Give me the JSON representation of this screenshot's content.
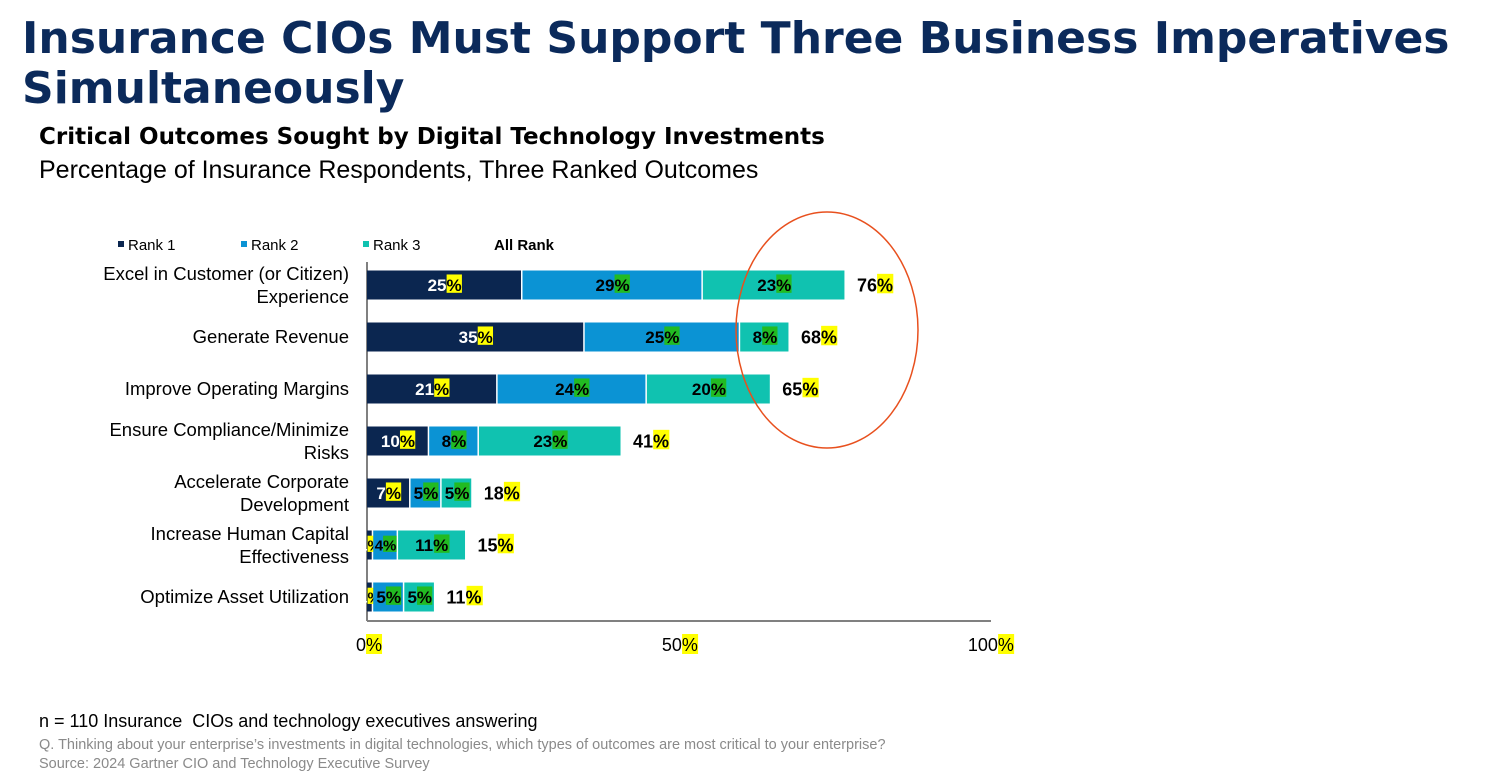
{
  "header": {
    "title": "Insurance CIOs Must Support Three Business Imperatives Simultaneously",
    "subtitle": "Critical Outcomes Sought by Digital Technology Investments",
    "subtitle2": "Percentage of Insurance Respondents, Three Ranked Outcomes"
  },
  "footer": {
    "n_note": "n = 110 Insurance  CIOs and technology executives answering",
    "question": "Q. Thinking about your enterprise’s investments in digital technologies, which types of outcomes are most critical to your enterprise?",
    "source": "Source: 2024 Gartner CIO and Technology Executive Survey"
  },
  "colors": {
    "rank1": "#0b2650",
    "rank2": "#0b93d4",
    "rank3": "#10c2b0",
    "percent_highlight": "#ffff00",
    "percent_highlight_green": "#22bb22",
    "circle": "#e8501e"
  },
  "chart_data": {
    "type": "bar",
    "orientation": "horizontal",
    "stacked": true,
    "categories": [
      [
        "Excel in Customer (or Citizen)",
        "Experience"
      ],
      [
        "Generate Revenue"
      ],
      [
        "Improve Operating Margins"
      ],
      [
        "Ensure Compliance/Minimize",
        "Risks"
      ],
      [
        "Accelerate Corporate",
        "Development"
      ],
      [
        "Increase Human Capital",
        "Effectiveness"
      ],
      [
        "Optimize Asset Utilization"
      ]
    ],
    "series": [
      {
        "name": "Rank 1",
        "values": [
          25,
          35,
          21,
          10,
          7,
          1,
          1
        ]
      },
      {
        "name": "Rank 2",
        "values": [
          29,
          25,
          24,
          8,
          5,
          4,
          5
        ]
      },
      {
        "name": "Rank 3",
        "values": [
          23,
          8,
          20,
          23,
          5,
          11,
          5
        ]
      }
    ],
    "totals_label": "All Rank",
    "totals": [
      76,
      68,
      65,
      41,
      18,
      15,
      11
    ],
    "xlim": [
      0,
      100
    ],
    "xticks": [
      0,
      50,
      100
    ],
    "tick_suffix": "%",
    "legend_position": "top",
    "annotation": "circle around top three bars' right ends"
  }
}
